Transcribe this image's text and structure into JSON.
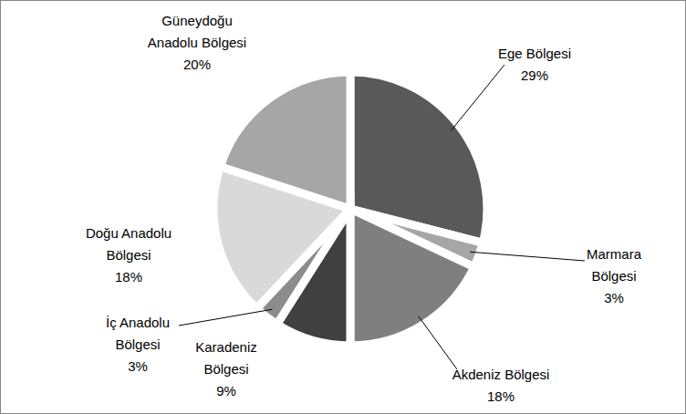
{
  "chart_data": {
    "type": "pie",
    "categories": [
      "Ege Bölgesi",
      "Marmara Bölgesi",
      "Akdeniz Bölgesi",
      "Karadeniz Bölgesi",
      "İç Anadolu Bölgesi",
      "Doğu Anadolu Bölgesi",
      "Güneydoğu Anadolu Bölgesi"
    ],
    "values": [
      29,
      3,
      18,
      9,
      3,
      18,
      20
    ],
    "value_labels": [
      "29%",
      "3%",
      "18%",
      "9%",
      "3%",
      "18%",
      "20%"
    ],
    "colors": [
      "#595959",
      "#a6a6a6",
      "#7f7f7f",
      "#404040",
      "#8c8c8c",
      "#d9d9d9",
      "#a6a6a6"
    ],
    "data_labels": true
  }
}
